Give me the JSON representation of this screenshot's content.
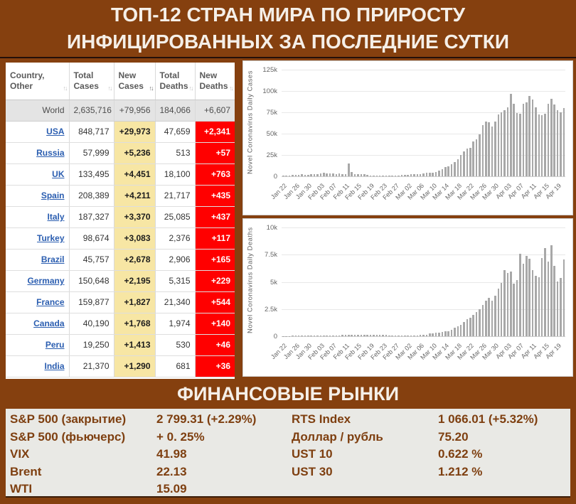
{
  "title": {
    "line1": "ТОП-12 СТРАН МИРА ПО ПРИРОСТУ",
    "line2": "ИНФИЦИРОВАННЫХ ЗА ПОСЛЕДНИЕ СУТКИ"
  },
  "colors": {
    "background": "#85400F",
    "new_cases_yellow": "#F7E6A4",
    "new_deaths_red": "#FF0000",
    "link_blue": "#2A5DB0",
    "bar_gray": "#A8A8A8",
    "financial_panel": "#E9E9E5",
    "financial_text": "#7E3F10"
  },
  "table": {
    "columns": [
      {
        "line1": "Country,",
        "line2": "Other",
        "sort_icon": "sort-icon",
        "sort_state": "inactive"
      },
      {
        "line1": "Total",
        "line2": "Cases",
        "sort_icon": "sort-icon",
        "sort_state": "inactive"
      },
      {
        "line1": "New",
        "line2": "Cases",
        "sort_icon": "sort-icon",
        "sort_state": "desc"
      },
      {
        "line1": "Total",
        "line2": "Deaths",
        "sort_icon": "sort-icon",
        "sort_state": "inactive"
      },
      {
        "line1": "New",
        "line2": "Deaths",
        "sort_icon": "sort-icon",
        "sort_state": "inactive"
      }
    ],
    "world_row": {
      "country": "World",
      "total_cases": "2,635,716",
      "new_cases": "+79,956",
      "total_deaths": "184,066",
      "new_deaths": "+6,607"
    },
    "rows": [
      {
        "country": "USA",
        "total_cases": "848,717",
        "new_cases": "+29,973",
        "total_deaths": "47,659",
        "new_deaths": "+2,341"
      },
      {
        "country": "Russia",
        "total_cases": "57,999",
        "new_cases": "+5,236",
        "total_deaths": "513",
        "new_deaths": "+57"
      },
      {
        "country": "UK",
        "total_cases": "133,495",
        "new_cases": "+4,451",
        "total_deaths": "18,100",
        "new_deaths": "+763"
      },
      {
        "country": "Spain",
        "total_cases": "208,389",
        "new_cases": "+4,211",
        "total_deaths": "21,717",
        "new_deaths": "+435"
      },
      {
        "country": "Italy",
        "total_cases": "187,327",
        "new_cases": "+3,370",
        "total_deaths": "25,085",
        "new_deaths": "+437"
      },
      {
        "country": "Turkey",
        "total_cases": "98,674",
        "new_cases": "+3,083",
        "total_deaths": "2,376",
        "new_deaths": "+117"
      },
      {
        "country": "Brazil",
        "total_cases": "45,757",
        "new_cases": "+2,678",
        "total_deaths": "2,906",
        "new_deaths": "+165"
      },
      {
        "country": "Germany",
        "total_cases": "150,648",
        "new_cases": "+2,195",
        "total_deaths": "5,315",
        "new_deaths": "+229"
      },
      {
        "country": "France",
        "total_cases": "159,877",
        "new_cases": "+1,827",
        "total_deaths": "21,340",
        "new_deaths": "+544"
      },
      {
        "country": "Canada",
        "total_cases": "40,190",
        "new_cases": "+1,768",
        "total_deaths": "1,974",
        "new_deaths": "+140"
      },
      {
        "country": "Peru",
        "total_cases": "19,250",
        "new_cases": "+1,413",
        "total_deaths": "530",
        "new_deaths": "+46"
      },
      {
        "country": "India",
        "total_cases": "21,370",
        "new_cases": "+1,290",
        "total_deaths": "681",
        "new_deaths": "+36"
      }
    ]
  },
  "chart_data": [
    {
      "type": "bar",
      "title": "",
      "ylabel": "Novel Coronavirus Daily Cases",
      "xlabel": "",
      "ylim": [
        0,
        125000
      ],
      "ytick_values": [
        0,
        25000,
        50000,
        75000,
        100000,
        125000
      ],
      "ytick_labels": [
        "0",
        "25k",
        "50k",
        "75k",
        "100k",
        "125k"
      ],
      "x_tick_every": 4,
      "x_tick_labels": [
        "Jan 22",
        "Jan 26",
        "Jan 30",
        "Feb 03",
        "Feb 07",
        "Feb 11",
        "Feb 15",
        "Feb 19",
        "Feb 23",
        "Feb 27",
        "Mar 02",
        "Mar 06",
        "Mar 10",
        "Mar 14",
        "Mar 18",
        "Mar 22",
        "Mar 26",
        "Mar 30",
        "Apr 03",
        "Apr 07",
        "Apr 11",
        "Apr 15",
        "Apr 19"
      ],
      "values": [
        550,
        700,
        800,
        1750,
        1500,
        1800,
        2600,
        1800,
        2000,
        2100,
        2600,
        2850,
        3250,
        3900,
        3750,
        3200,
        3450,
        2700,
        3000,
        2600,
        2100,
        15150,
        5150,
        2800,
        2100,
        2200,
        2100,
        1900,
        600,
        650,
        900,
        700,
        500,
        650,
        600,
        500,
        650,
        800,
        1400,
        1800,
        1900,
        2250,
        2450,
        2350,
        2900,
        3650,
        3900,
        4050,
        4500,
        5250,
        6850,
        8000,
        10950,
        11500,
        13900,
        16550,
        20300,
        24800,
        28900,
        32750,
        33300,
        40850,
        43650,
        49250,
        59850,
        64300,
        63300,
        58550,
        63850,
        72800,
        74800,
        77700,
        80500,
        96350,
        85350,
        74300,
        73650,
        85000,
        86600,
        94300,
        89650,
        80700,
        72250,
        71450,
        73400,
        85400,
        90450,
        84150,
        77650,
        74750,
        80100
      ]
    },
    {
      "type": "bar",
      "title": "",
      "ylabel": "Novel Coronavirus Daily Deaths",
      "xlabel": "",
      "ylim": [
        0,
        10000
      ],
      "ytick_values": [
        0,
        2500,
        5000,
        7500,
        10000
      ],
      "ytick_labels": [
        "0",
        "2.5k",
        "5k",
        "7.5k",
        "10k"
      ],
      "x_tick_every": 4,
      "x_tick_labels": [
        "Jan 22",
        "Jan 26",
        "Jan 30",
        "Feb 03",
        "Feb 07",
        "Feb 11",
        "Feb 15",
        "Feb 19",
        "Feb 23",
        "Feb 27",
        "Mar 02",
        "Mar 06",
        "Mar 10",
        "Mar 14",
        "Mar 18",
        "Mar 22",
        "Mar 26",
        "Mar 30",
        "Apr 03",
        "Apr 07",
        "Apr 11",
        "Apr 15",
        "Apr 19"
      ],
      "values": [
        20,
        25,
        25,
        50,
        45,
        60,
        65,
        65,
        40,
        45,
        45,
        45,
        60,
        65,
        65,
        70,
        75,
        85,
        90,
        100,
        110,
        145,
        120,
        145,
        140,
        105,
        100,
        135,
        120,
        115,
        120,
        110,
        150,
        160,
        70,
        50,
        45,
        60,
        70,
        60,
        70,
        80,
        85,
        90,
        100,
        100,
        115,
        230,
        275,
        325,
        340,
        375,
        440,
        465,
        615,
        785,
        925,
        1075,
        1325,
        1550,
        1700,
        1950,
        2250,
        2500,
        2850,
        3250,
        3500,
        3250,
        3750,
        4350,
        4900,
        6050,
        5850,
        5950,
        4850,
        5150,
        7550,
        6650,
        7400,
        7100,
        6050,
        5550,
        5450,
        7200,
        8100,
        6850,
        8350,
        6450,
        5050,
        5350,
        7050
      ]
    }
  ],
  "financial": {
    "title": "ФИНАНСОВЫЕ РЫНКИ",
    "left": [
      {
        "label": "S&P 500 (закрытие)",
        "value": "2 799.31 (+2.29%)"
      },
      {
        "label": "S&P 500 (фьючерс)",
        "value": "+ 0. 25%"
      },
      {
        "label": "VIX",
        "value": "41.98"
      },
      {
        "label": "Brent",
        "value": "22.13"
      },
      {
        "label": "WTI",
        "value": "15.09"
      }
    ],
    "right": [
      {
        "label": "RTS Index",
        "value": "1 066.01 (+5.32%)"
      },
      {
        "label": "Доллар / рубль",
        "value": "75.20"
      },
      {
        "label": "UST 10",
        "value": "0.622 %"
      },
      {
        "label": "UST 30",
        "value": "1.212 %"
      }
    ]
  }
}
